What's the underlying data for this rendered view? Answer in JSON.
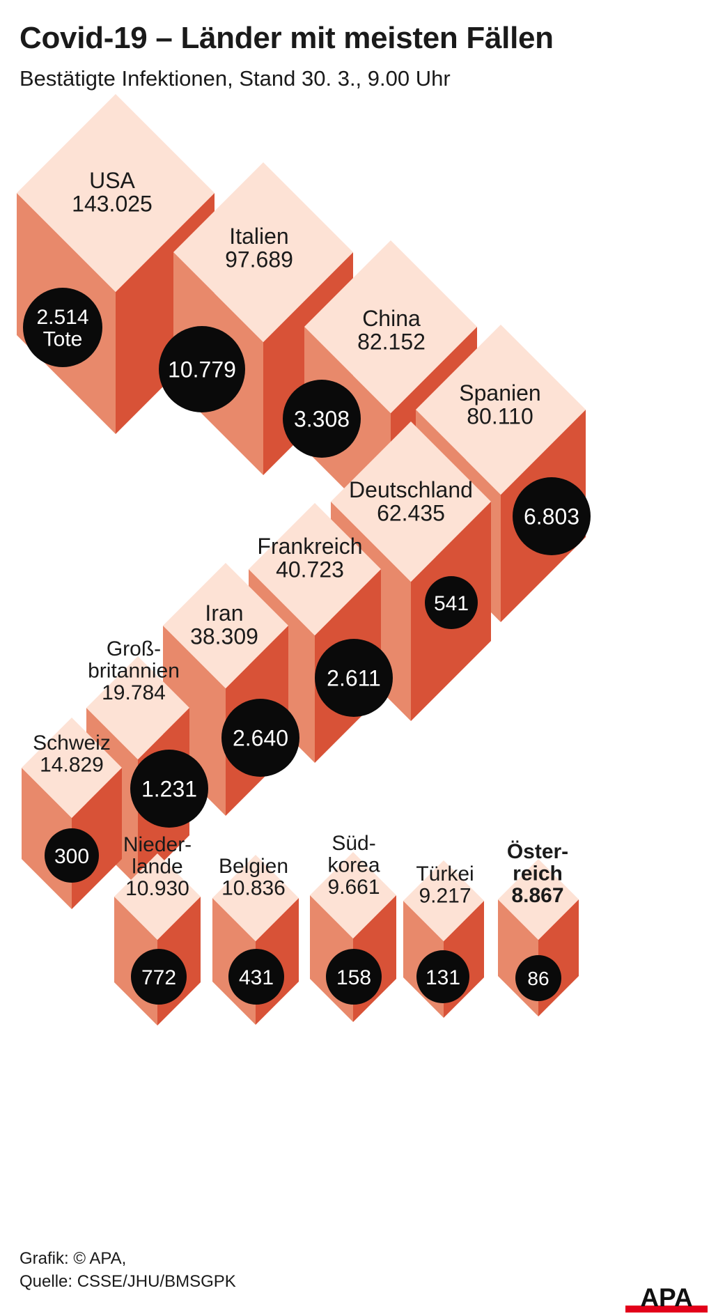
{
  "header": {
    "title": "Covid-19 – Länder mit meisten Fällen",
    "subtitle": "Bestätigte Infektionen, Stand 30. 3., 9.00 Uhr"
  },
  "footer": {
    "credit": "Grafik: © APA,",
    "source": "Quelle: CSSE/JHU/BMSGPK",
    "logo_text": "APA"
  },
  "colors": {
    "top_face": "#fde2d5",
    "left_face": "#e8896b",
    "right_face": "#d85237",
    "circle": "#0a0a0a",
    "logo_red": "#e2001a"
  },
  "chart_data": {
    "type": "isometric cube chart",
    "series": [
      {
        "name": "Bestätigte Infektionen",
        "unit": "Fälle"
      },
      {
        "name": "Tote"
      }
    ],
    "items": [
      {
        "country_lines": [
          "USA"
        ],
        "cases": 143025,
        "cases_label": "143.025",
        "deaths": 2514,
        "deaths_lines": [
          "2.514",
          "Tote"
        ],
        "highlight": false
      },
      {
        "country_lines": [
          "Italien"
        ],
        "cases": 97689,
        "cases_label": "97.689",
        "deaths": 10779,
        "deaths_lines": [
          "10.779"
        ],
        "highlight": false
      },
      {
        "country_lines": [
          "China"
        ],
        "cases": 82152,
        "cases_label": "82.152",
        "deaths": 3308,
        "deaths_lines": [
          "3.308"
        ],
        "highlight": false
      },
      {
        "country_lines": [
          "Spanien"
        ],
        "cases": 80110,
        "cases_label": "80.110",
        "deaths": 6803,
        "deaths_lines": [
          "6.803"
        ],
        "highlight": false
      },
      {
        "country_lines": [
          "Deutschland"
        ],
        "cases": 62435,
        "cases_label": "62.435",
        "deaths": 541,
        "deaths_lines": [
          "541"
        ],
        "highlight": false
      },
      {
        "country_lines": [
          "Frankreich"
        ],
        "cases": 40723,
        "cases_label": "40.723",
        "deaths": 2611,
        "deaths_lines": [
          "2.611"
        ],
        "highlight": false
      },
      {
        "country_lines": [
          "Iran"
        ],
        "cases": 38309,
        "cases_label": "38.309",
        "deaths": 2640,
        "deaths_lines": [
          "2.640"
        ],
        "highlight": false
      },
      {
        "country_lines": [
          "Groß-",
          "britannien"
        ],
        "cases": 19784,
        "cases_label": "19.784",
        "deaths": 1231,
        "deaths_lines": [
          "1.231"
        ],
        "highlight": false
      },
      {
        "country_lines": [
          "Schweiz"
        ],
        "cases": 14829,
        "cases_label": "14.829",
        "deaths": 300,
        "deaths_lines": [
          "300"
        ],
        "highlight": false
      },
      {
        "country_lines": [
          "Nieder-",
          "lande"
        ],
        "cases": 10930,
        "cases_label": "10.930",
        "deaths": 772,
        "deaths_lines": [
          "772"
        ],
        "highlight": false
      },
      {
        "country_lines": [
          "Belgien"
        ],
        "cases": 10836,
        "cases_label": "10.836",
        "deaths": 431,
        "deaths_lines": [
          "431"
        ],
        "highlight": false
      },
      {
        "country_lines": [
          "Süd-",
          "korea"
        ],
        "cases": 9661,
        "cases_label": "9.661",
        "deaths": 158,
        "deaths_lines": [
          "158"
        ],
        "highlight": false
      },
      {
        "country_lines": [
          "Türkei"
        ],
        "cases": 9217,
        "cases_label": "9.217",
        "deaths": 131,
        "deaths_lines": [
          "131"
        ],
        "highlight": false
      },
      {
        "country_lines": [
          "Öster-",
          "reich"
        ],
        "cases": 8867,
        "cases_label": "8.867",
        "deaths": 86,
        "deaths_lines": [
          "86"
        ],
        "highlight": true
      }
    ]
  }
}
